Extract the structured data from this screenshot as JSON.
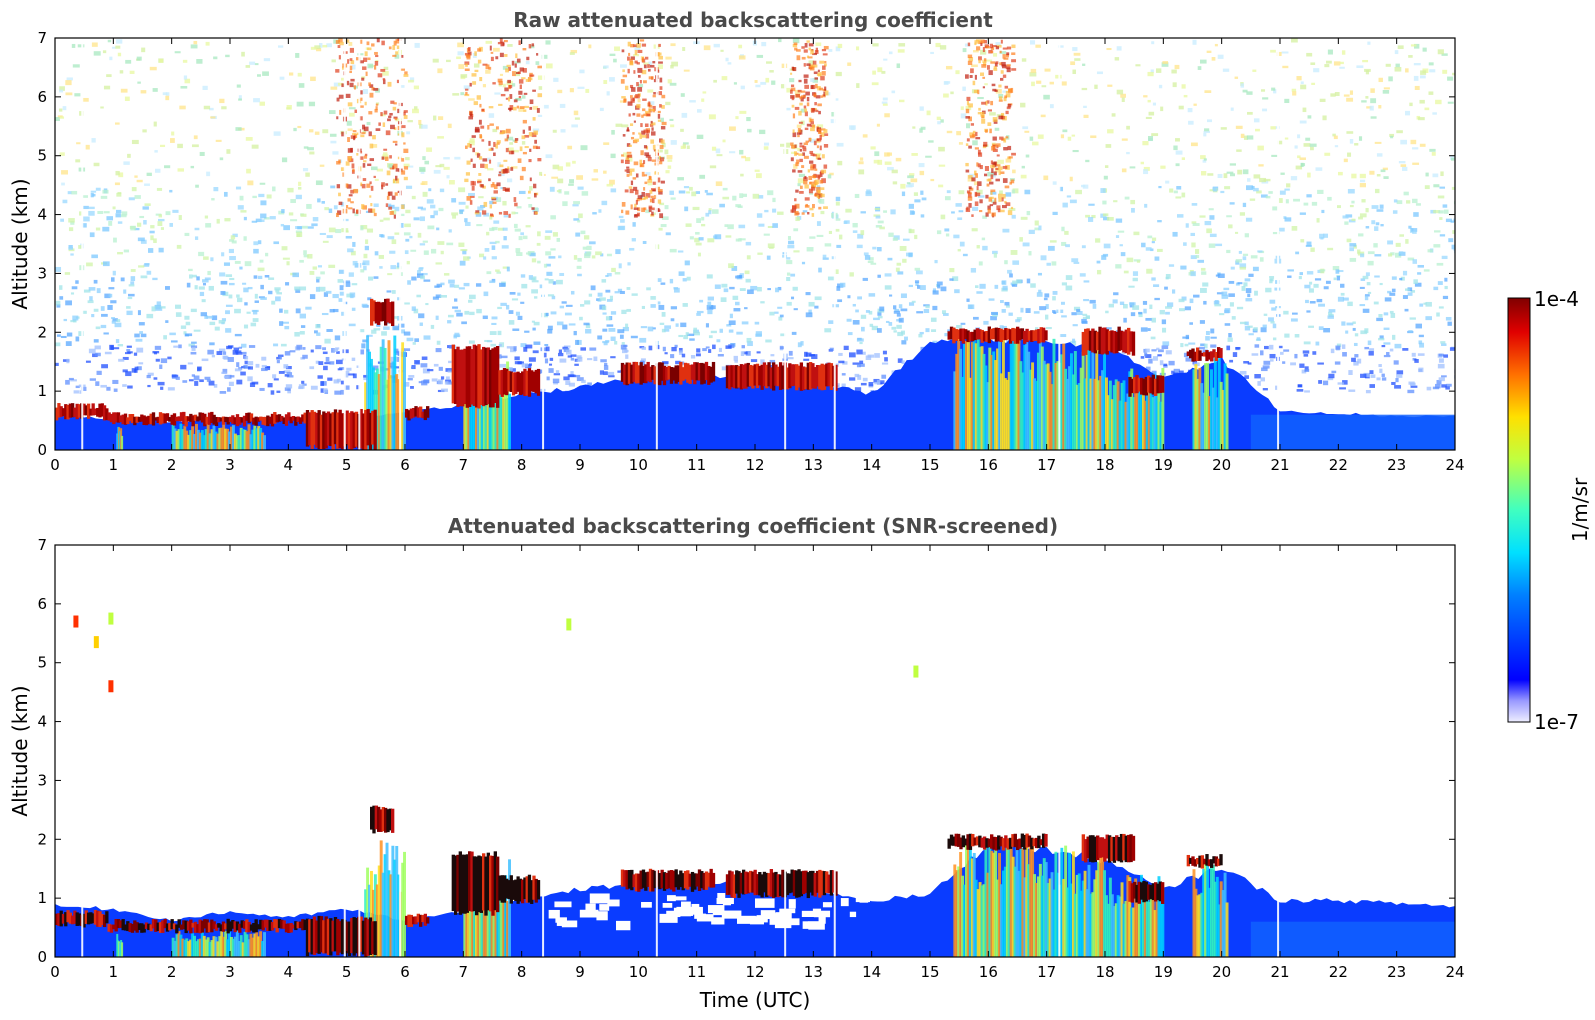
{
  "chart_data": [
    {
      "type": "heatmap",
      "title": "Raw attenuated backscattering coefficient",
      "xlabel": "",
      "ylabel": "Altitude (km)",
      "xlim": [
        0,
        24
      ],
      "ylim": [
        0,
        7
      ],
      "xticks": [
        0,
        1,
        2,
        3,
        4,
        5,
        6,
        7,
        8,
        9,
        10,
        11,
        12,
        13,
        14,
        15,
        16,
        17,
        18,
        19,
        20,
        21,
        22,
        23,
        24
      ],
      "yticks": [
        0,
        1,
        2,
        3,
        4,
        5,
        6,
        7
      ],
      "boundary_layer_top_km": [
        [
          0,
          0.65
        ],
        [
          1,
          0.55
        ],
        [
          2,
          0.5
        ],
        [
          3,
          0.55
        ],
        [
          4,
          0.55
        ],
        [
          5,
          0.6
        ],
        [
          6,
          0.65
        ],
        [
          7,
          0.8
        ],
        [
          8,
          1.0
        ],
        [
          9,
          1.1
        ],
        [
          10,
          1.3
        ],
        [
          11,
          1.3
        ],
        [
          12,
          1.3
        ],
        [
          13,
          1.2
        ],
        [
          14,
          1.0
        ],
        [
          15,
          1.9
        ],
        [
          16,
          2.0
        ],
        [
          17,
          1.9
        ],
        [
          18,
          1.8
        ],
        [
          19,
          1.3
        ],
        [
          20,
          1.6
        ],
        [
          21,
          0.7
        ],
        [
          22,
          0.65
        ],
        [
          23,
          0.6
        ],
        [
          24,
          0.6
        ]
      ],
      "cloud_layers": [
        {
          "x": [
            0.0,
            0.9
          ],
          "altitude_km": [
            0.5,
            0.8
          ]
        },
        {
          "x": [
            0.9,
            4.3
          ],
          "altitude_km": [
            0.4,
            0.65
          ]
        },
        {
          "x": [
            4.3,
            5.5
          ],
          "altitude_km": [
            0.0,
            0.7
          ]
        },
        {
          "x": [
            5.4,
            5.8
          ],
          "altitude_km": [
            2.1,
            2.6
          ]
        },
        {
          "x": [
            6.0,
            6.4
          ],
          "altitude_km": [
            0.5,
            0.75
          ]
        },
        {
          "x": [
            6.8,
            7.6
          ],
          "altitude_km": [
            0.7,
            1.8
          ]
        },
        {
          "x": [
            7.6,
            8.3
          ],
          "altitude_km": [
            0.9,
            1.4
          ]
        },
        {
          "x": [
            9.7,
            11.3
          ],
          "altitude_km": [
            1.1,
            1.5
          ]
        },
        {
          "x": [
            11.5,
            13.4
          ],
          "altitude_km": [
            1.0,
            1.5
          ]
        },
        {
          "x": [
            15.3,
            17.0
          ],
          "altitude_km": [
            1.8,
            2.1
          ]
        },
        {
          "x": [
            17.6,
            18.5
          ],
          "altitude_km": [
            1.6,
            2.1
          ]
        },
        {
          "x": [
            18.4,
            19.0
          ],
          "altitude_km": [
            0.9,
            1.3
          ]
        },
        {
          "x": [
            19.4,
            20.0
          ],
          "altitude_km": [
            1.5,
            1.75
          ]
        }
      ],
      "precipitation_shafts": [
        {
          "x": [
            1.05,
            1.15
          ],
          "altitude_km": [
            0.0,
            0.4
          ]
        },
        {
          "x": [
            2.0,
            3.6
          ],
          "altitude_km": [
            0.0,
            0.45
          ]
        },
        {
          "x": [
            5.3,
            6.0
          ],
          "altitude_km": [
            0.0,
            2.0
          ]
        },
        {
          "x": [
            7.0,
            7.8
          ],
          "altitude_km": [
            0.0,
            1.7
          ]
        },
        {
          "x": [
            15.4,
            17.0
          ],
          "altitude_km": [
            0.0,
            2.0
          ]
        },
        {
          "x": [
            17.0,
            18.0
          ],
          "altitude_km": [
            0.0,
            1.9
          ]
        },
        {
          "x": [
            18.0,
            19.0
          ],
          "altitude_km": [
            0.0,
            1.4
          ]
        },
        {
          "x": [
            19.5,
            20.1
          ],
          "altitude_km": [
            0.0,
            1.6
          ]
        }
      ],
      "data_gaps_x": [
        0.45,
        4.95,
        5.2,
        5.9,
        8.35,
        10.3,
        12.5,
        13.35,
        17.2,
        20.95
      ]
    },
    {
      "type": "heatmap",
      "title": "Attenuated backscattering coefficient (SNR-screened)",
      "xlabel": "Time (UTC)",
      "ylabel": "Altitude (km)",
      "xlim": [
        0,
        24
      ],
      "ylim": [
        0,
        7
      ],
      "xticks": [
        0,
        1,
        2,
        3,
        4,
        5,
        6,
        7,
        8,
        9,
        10,
        11,
        12,
        13,
        14,
        15,
        16,
        17,
        18,
        19,
        20,
        21,
        22,
        23,
        24
      ],
      "yticks": [
        0,
        1,
        2,
        3,
        4,
        5,
        6,
        7
      ],
      "boundary_layer_top_km": [
        [
          0,
          0.9
        ],
        [
          1,
          0.85
        ],
        [
          2,
          0.65
        ],
        [
          3,
          0.8
        ],
        [
          4,
          0.7
        ],
        [
          5,
          0.85
        ],
        [
          6,
          0.65
        ],
        [
          7,
          0.8
        ],
        [
          8,
          1.0
        ],
        [
          9,
          1.2
        ],
        [
          10,
          1.3
        ],
        [
          11,
          1.3
        ],
        [
          12,
          1.3
        ],
        [
          13,
          1.2
        ],
        [
          14,
          1.0
        ],
        [
          15,
          1.1
        ],
        [
          16,
          2.0
        ],
        [
          17,
          1.9
        ],
        [
          18,
          1.7
        ],
        [
          19,
          1.2
        ],
        [
          20,
          1.6
        ],
        [
          21,
          1.0
        ],
        [
          22,
          1.0
        ],
        [
          23,
          0.95
        ],
        [
          24,
          0.9
        ]
      ],
      "cloud_layers": [
        {
          "x": [
            0.0,
            0.9
          ],
          "altitude_km": [
            0.5,
            0.8
          ]
        },
        {
          "x": [
            0.9,
            4.3
          ],
          "altitude_km": [
            0.4,
            0.65
          ]
        },
        {
          "x": [
            4.3,
            5.5
          ],
          "altitude_km": [
            0.0,
            0.7
          ]
        },
        {
          "x": [
            5.4,
            5.8
          ],
          "altitude_km": [
            2.1,
            2.6
          ]
        },
        {
          "x": [
            6.0,
            6.4
          ],
          "altitude_km": [
            0.5,
            0.75
          ]
        },
        {
          "x": [
            6.8,
            7.6
          ],
          "altitude_km": [
            0.7,
            1.8
          ]
        },
        {
          "x": [
            7.6,
            8.3
          ],
          "altitude_km": [
            0.9,
            1.4
          ]
        },
        {
          "x": [
            9.7,
            11.3
          ],
          "altitude_km": [
            1.1,
            1.5
          ]
        },
        {
          "x": [
            11.5,
            13.4
          ],
          "altitude_km": [
            1.0,
            1.5
          ]
        },
        {
          "x": [
            15.3,
            17.0
          ],
          "altitude_km": [
            1.8,
            2.1
          ]
        },
        {
          "x": [
            17.6,
            18.5
          ],
          "altitude_km": [
            1.6,
            2.1
          ]
        },
        {
          "x": [
            18.4,
            19.0
          ],
          "altitude_km": [
            0.9,
            1.3
          ]
        },
        {
          "x": [
            19.4,
            20.0
          ],
          "altitude_km": [
            1.5,
            1.75
          ]
        }
      ],
      "precipitation_shafts": [
        {
          "x": [
            1.05,
            1.15
          ],
          "altitude_km": [
            0.0,
            0.4
          ]
        },
        {
          "x": [
            2.0,
            3.6
          ],
          "altitude_km": [
            0.0,
            0.45
          ]
        },
        {
          "x": [
            5.3,
            6.0
          ],
          "altitude_km": [
            0.0,
            2.0
          ]
        },
        {
          "x": [
            7.0,
            7.8
          ],
          "altitude_km": [
            0.0,
            1.7
          ]
        },
        {
          "x": [
            15.4,
            17.0
          ],
          "altitude_km": [
            0.0,
            2.0
          ]
        },
        {
          "x": [
            17.0,
            18.0
          ],
          "altitude_km": [
            0.0,
            1.9
          ]
        },
        {
          "x": [
            18.0,
            19.0
          ],
          "altitude_km": [
            0.0,
            1.4
          ]
        },
        {
          "x": [
            19.5,
            20.1
          ],
          "altitude_km": [
            0.0,
            1.6
          ]
        }
      ],
      "isolated_echoes": [
        {
          "x": 0.35,
          "altitude_km": 5.7
        },
        {
          "x": 0.95,
          "altitude_km": 5.75
        },
        {
          "x": 0.95,
          "altitude_km": 4.6
        },
        {
          "x": 0.7,
          "altitude_km": 5.35
        },
        {
          "x": 8.8,
          "altitude_km": 5.65
        },
        {
          "x": 14.75,
          "altitude_km": 4.85
        }
      ]
    }
  ],
  "colorbar": {
    "label": "1/m/sr",
    "max_label": "1e-4",
    "min_label": "1e-7",
    "scale": "log",
    "range": [
      1e-07,
      0.0001
    ],
    "colormap": "jet"
  }
}
